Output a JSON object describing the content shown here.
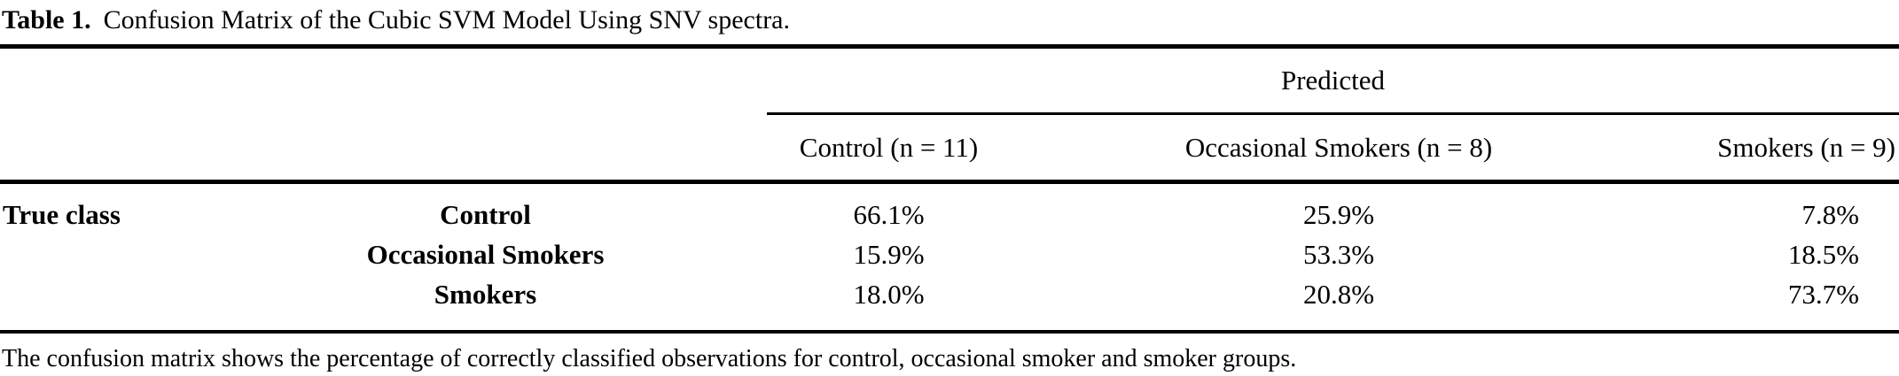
{
  "caption": {
    "label": "Table 1.",
    "text": "Confusion Matrix of the Cubic SVM Model Using SNV spectra."
  },
  "table": {
    "group_header": "Predicted",
    "row_axis_label": "True class",
    "columns": [
      "Control (n = 11)",
      "Occasional Smokers (n = 8)",
      "Smokers (n = 9)"
    ],
    "rows": [
      {
        "label": "Control",
        "values": [
          "66.1%",
          "25.9%",
          "7.8%"
        ]
      },
      {
        "label": "Occasional Smokers",
        "values": [
          "15.9%",
          "53.3%",
          "18.5%"
        ]
      },
      {
        "label": "Smokers",
        "values": [
          "18.0%",
          "20.8%",
          "73.7%"
        ]
      }
    ]
  },
  "footnote": "The confusion matrix shows the percentage of correctly classified observations for control, occasional smoker and smoker groups.",
  "colors": {
    "background": "#ffffff",
    "text": "#000000",
    "rule": "#000000"
  },
  "chart_data": {
    "type": "table",
    "title": "Table 1. Confusion Matrix of the Cubic SVM Model Using SNV spectra.",
    "row_axis": "True class",
    "col_axis": "Predicted",
    "columns": [
      "Control (n = 11)",
      "Occasional Smokers (n = 8)",
      "Smokers (n = 9)"
    ],
    "rows": [
      "Control",
      "Occasional Smokers",
      "Smokers"
    ],
    "values_percent": [
      [
        66.1,
        25.9,
        7.8
      ],
      [
        15.9,
        53.3,
        18.5
      ],
      [
        18.0,
        20.8,
        73.7
      ]
    ]
  }
}
